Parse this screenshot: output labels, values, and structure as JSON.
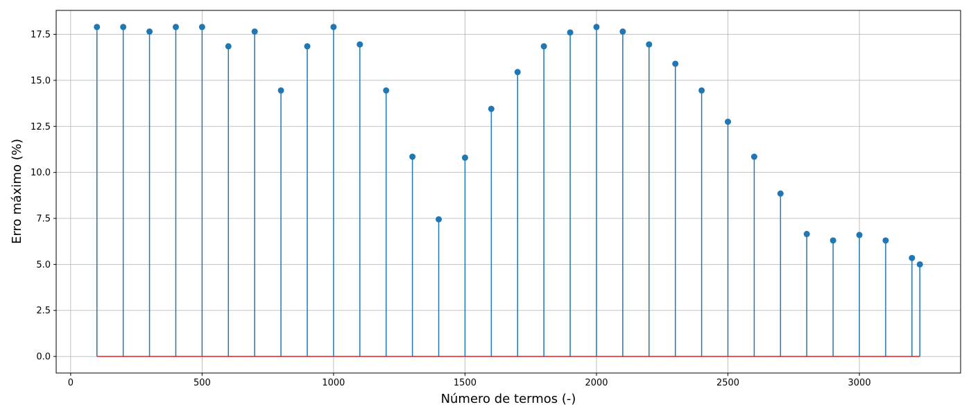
{
  "chart_data": {
    "type": "stem",
    "xlabel": "Número de termos (-)",
    "ylabel": "Erro máximo (%)",
    "xlim": [
      -55,
      3385
    ],
    "ylim": [
      -0.9,
      18.8
    ],
    "xticks": [
      0,
      500,
      1000,
      1500,
      2000,
      2500,
      3000
    ],
    "yticks": [
      0.0,
      2.5,
      5.0,
      7.5,
      10.0,
      12.5,
      15.0,
      17.5
    ],
    "xtick_labels": [
      "0",
      "500",
      "1000",
      "1500",
      "2000",
      "2500",
      "3000"
    ],
    "ytick_labels": [
      "0.0",
      "2.5",
      "5.0",
      "7.5",
      "10.0",
      "12.5",
      "15.0",
      "17.5"
    ],
    "grid": true,
    "baseline": 0,
    "x": [
      100,
      200,
      300,
      400,
      500,
      600,
      700,
      800,
      900,
      1000,
      1100,
      1200,
      1300,
      1400,
      1500,
      1600,
      1700,
      1800,
      1900,
      2000,
      2100,
      2200,
      2300,
      2400,
      2500,
      2600,
      2700,
      2800,
      2900,
      3000,
      3100,
      3200,
      3230
    ],
    "values": [
      17.9,
      17.9,
      17.65,
      17.9,
      17.9,
      16.85,
      17.65,
      14.45,
      16.85,
      17.9,
      16.95,
      14.45,
      10.85,
      7.45,
      10.8,
      13.45,
      15.45,
      16.85,
      17.6,
      17.9,
      17.65,
      16.95,
      15.9,
      14.45,
      12.75,
      10.85,
      8.85,
      6.65,
      6.3,
      6.6,
      6.3,
      5.35,
      5.0
    ],
    "colors": {
      "stem": "#1f77b4",
      "baseline": "#d62728",
      "grid": "#b0b0b0"
    }
  }
}
